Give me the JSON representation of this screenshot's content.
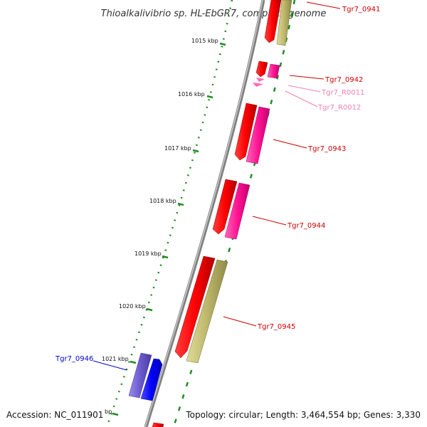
{
  "title": "Thioalkalivibrio sp. HL-EbGR7, complete genome",
  "footer": {
    "accession": "Accession: NC_011901",
    "summary": "Topology: circular; Length: 3,464,554 bp; Genes: 3,330"
  },
  "ticks": [
    {
      "label": "1015 kbp"
    },
    {
      "label": "1016 kbp"
    },
    {
      "label": "1017 kbp"
    },
    {
      "label": "1018 kbp"
    },
    {
      "label": "1019 kbp"
    },
    {
      "label": "1020 kbp"
    },
    {
      "label": "1021 kbp"
    },
    {
      "label": "bp"
    }
  ],
  "genes": [
    {
      "label": "Tgr7_0941",
      "color": "#cc0000"
    },
    {
      "label": "Tgr7_0942",
      "color": "#cc0000"
    },
    {
      "label": "Tgr7_R0011",
      "color": "#f080b0"
    },
    {
      "label": "Tgr7_R0012",
      "color": "#f080b0"
    },
    {
      "label": "Tgr7_0943",
      "color": "#cc0000"
    },
    {
      "label": "Tgr7_0944",
      "color": "#cc0000"
    },
    {
      "label": "Tgr7_0945",
      "color": "#cc0000"
    },
    {
      "label": "Tgr7_0946",
      "color": "#0000cc"
    }
  ],
  "colors": {
    "cds_red": "#ff0000",
    "cds_magenta": "#ff1493",
    "cds_khaki": "#bdb76b",
    "cds_blue": "#0000ff",
    "cds_slateblue": "#6a5acd",
    "rna_pink": "#ff69b4",
    "backbone": "#808080",
    "gc_dots": "#228b22"
  }
}
